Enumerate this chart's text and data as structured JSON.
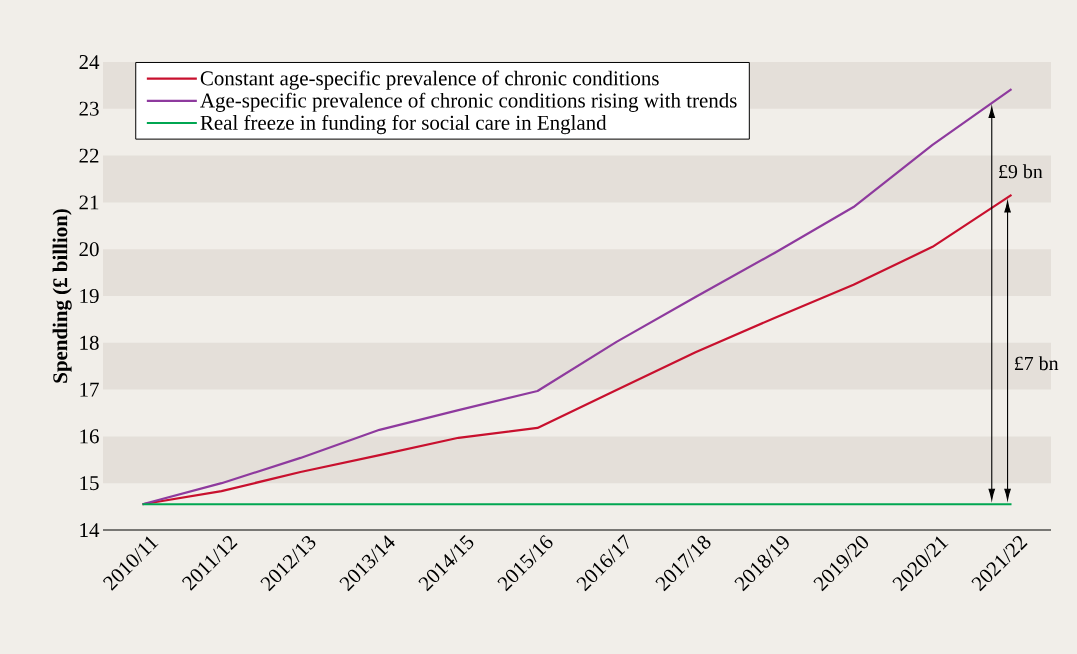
{
  "chart_data": {
    "type": "line",
    "ylabel": "Spending (£ billion)",
    "categories": [
      "2010/11",
      "2011/12",
      "2012/13",
      "2013/14",
      "2014/15",
      "2015/16",
      "2016/17",
      "2017/18",
      "2018/19",
      "2019/20",
      "2020/21",
      "2021/22"
    ],
    "series": [
      {
        "name": "Constant age-specific prevalence of chronic conditions",
        "color": "#c8102e",
        "values": [
          14.55,
          14.83,
          15.24,
          15.6,
          15.97,
          16.18,
          16.99,
          17.8,
          18.53,
          19.24,
          20.05,
          21.16
        ]
      },
      {
        "name": "Age-specific prevalence of chronic conditions rising with trends",
        "color": "#8e3a9e",
        "values": [
          14.55,
          15.0,
          15.54,
          16.14,
          16.56,
          16.97,
          18.02,
          18.98,
          19.92,
          20.9,
          22.23,
          23.42
        ]
      },
      {
        "name": "Real freeze in funding for social care in England",
        "color": "#00a651",
        "values": [
          14.55,
          14.55,
          14.55,
          14.55,
          14.55,
          14.55,
          14.55,
          14.55,
          14.55,
          14.55,
          14.55,
          14.55
        ]
      }
    ],
    "ylim": [
      14,
      24
    ],
    "yticks": [
      14,
      15,
      16,
      17,
      18,
      19,
      20,
      21,
      22,
      23,
      24
    ],
    "bands": [
      {
        "axis": "y",
        "from": 15,
        "to": 16,
        "color": "#e4dfd9"
      },
      {
        "axis": "y",
        "from": 17,
        "to": 18,
        "color": "#e4dfd9"
      },
      {
        "axis": "y",
        "from": 19,
        "to": 20,
        "color": "#e4dfd9"
      },
      {
        "axis": "y",
        "from": 21,
        "to": 22,
        "color": "#e4dfd9"
      },
      {
        "axis": "y",
        "from": 23,
        "to": 24,
        "color": "#e4dfd9"
      }
    ],
    "legend": "top left",
    "marker": "none",
    "line_style": "solid",
    "annotations": [
      "£9 bn",
      "£7 bn"
    ]
  }
}
